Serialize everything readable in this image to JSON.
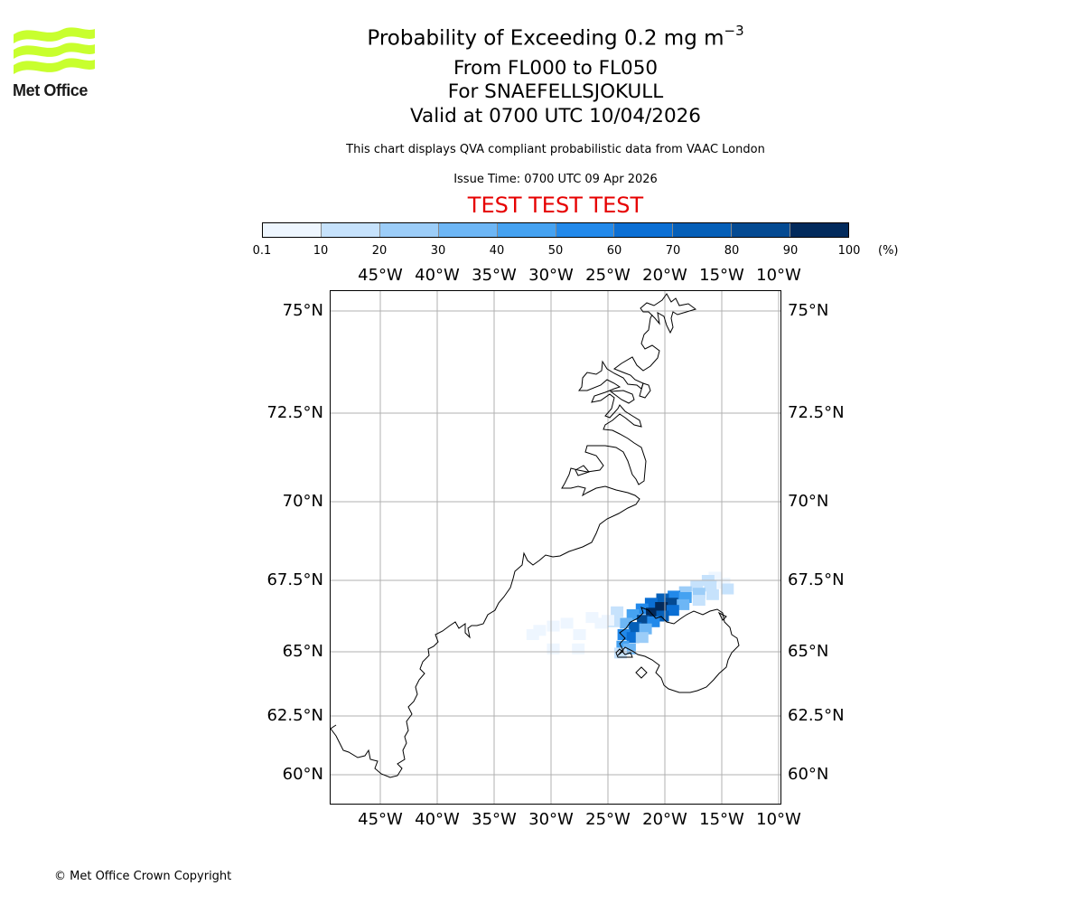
{
  "logo": {
    "text": "Met Office",
    "color": "#c8ff2e"
  },
  "title": {
    "main": "Probability of Exceeding 0.2 mg m",
    "superscript": "−3",
    "flight_levels": "From FL000 to FL050",
    "volcano": "For SNAEFELLSJOKULL",
    "valid": "Valid at 0700 UTC 10/04/2026"
  },
  "disclaimer": "This chart displays QVA compliant probabilistic data from VAAC London",
  "issue_time": "Issue Time: 0700 UTC 09 Apr 2026",
  "test_banner": "TEST TEST TEST",
  "colorbar": {
    "ticks": [
      "0.1",
      "10",
      "20",
      "30",
      "40",
      "50",
      "60",
      "70",
      "80",
      "90",
      "100"
    ],
    "unit": "(%)",
    "colors": [
      "#eef6ff",
      "#c6e2fc",
      "#9ccdf8",
      "#6db6f5",
      "#45a2f1",
      "#2289ea",
      "#0b6fd4",
      "#055fb8",
      "#044a92",
      "#022a5c"
    ]
  },
  "map": {
    "longitude_labels": [
      "45°W",
      "40°W",
      "35°W",
      "30°W",
      "25°W",
      "20°W",
      "15°W",
      "10°W"
    ],
    "latitude_labels": [
      "75°N",
      "72.5°N",
      "70°N",
      "67.5°N",
      "65°N",
      "62.5°N",
      "60°N"
    ],
    "plume_probabilities": [
      {
        "lon": -15.6,
        "lat": 67.6,
        "p": 5
      },
      {
        "lon": -16.2,
        "lat": 67.5,
        "p": 10
      },
      {
        "lon": -14.8,
        "lat": 67.4,
        "p": 5
      },
      {
        "lon": -17.2,
        "lat": 67.3,
        "p": 15
      },
      {
        "lon": -16.0,
        "lat": 67.3,
        "p": 15
      },
      {
        "lon": -14.5,
        "lat": 67.2,
        "p": 10
      },
      {
        "lon": -18.2,
        "lat": 67.1,
        "p": 25
      },
      {
        "lon": -17.0,
        "lat": 67.05,
        "p": 20
      },
      {
        "lon": -15.8,
        "lat": 67.0,
        "p": 15
      },
      {
        "lon": -19.2,
        "lat": 66.95,
        "p": 55
      },
      {
        "lon": -18.2,
        "lat": 66.9,
        "p": 45
      },
      {
        "lon": -17.0,
        "lat": 66.8,
        "p": 15
      },
      {
        "lon": -20.2,
        "lat": 66.85,
        "p": 75
      },
      {
        "lon": -19.4,
        "lat": 66.7,
        "p": 85
      },
      {
        "lon": -18.4,
        "lat": 66.65,
        "p": 35
      },
      {
        "lon": -21.2,
        "lat": 66.7,
        "p": 65
      },
      {
        "lon": -20.3,
        "lat": 66.55,
        "p": 95
      },
      {
        "lon": -19.3,
        "lat": 66.45,
        "p": 65
      },
      {
        "lon": -22.0,
        "lat": 66.5,
        "p": 55
      },
      {
        "lon": -21.1,
        "lat": 66.35,
        "p": 92
      },
      {
        "lon": -20.2,
        "lat": 66.25,
        "p": 75
      },
      {
        "lon": -22.8,
        "lat": 66.3,
        "p": 45
      },
      {
        "lon": -21.9,
        "lat": 66.1,
        "p": 85
      },
      {
        "lon": -21.0,
        "lat": 66.05,
        "p": 55
      },
      {
        "lon": -23.4,
        "lat": 66.0,
        "p": 35
      },
      {
        "lon": -22.6,
        "lat": 65.85,
        "p": 75
      },
      {
        "lon": -21.7,
        "lat": 65.8,
        "p": 35
      },
      {
        "lon": -23.6,
        "lat": 65.6,
        "p": 55
      },
      {
        "lon": -22.8,
        "lat": 65.5,
        "p": 65
      },
      {
        "lon": -22.0,
        "lat": 65.5,
        "p": 25
      },
      {
        "lon": -23.7,
        "lat": 65.2,
        "p": 45
      },
      {
        "lon": -23.1,
        "lat": 65.1,
        "p": 35
      },
      {
        "lon": -23.9,
        "lat": 64.95,
        "p": 15
      },
      {
        "lon": -24.5,
        "lat": 66.05,
        "p": 15
      },
      {
        "lon": -24.2,
        "lat": 66.4,
        "p": 10
      },
      {
        "lon": -25.0,
        "lat": 66.1,
        "p": 3
      },
      {
        "lon": -25.6,
        "lat": 66.0,
        "p": 3
      },
      {
        "lon": -26.4,
        "lat": 66.2,
        "p": 2
      },
      {
        "lon": -27.5,
        "lat": 65.6,
        "p": 2
      },
      {
        "lon": -28.6,
        "lat": 66.0,
        "p": 2
      },
      {
        "lon": -29.8,
        "lat": 65.9,
        "p": 2
      },
      {
        "lon": -31.0,
        "lat": 65.75,
        "p": 2
      },
      {
        "lon": -31.6,
        "lat": 65.6,
        "p": 2
      },
      {
        "lon": -27.6,
        "lat": 65.1,
        "p": 2
      },
      {
        "lon": -29.8,
        "lat": 65.1,
        "p": 2
      }
    ]
  },
  "copyright": "© Met Office Crown Copyright"
}
